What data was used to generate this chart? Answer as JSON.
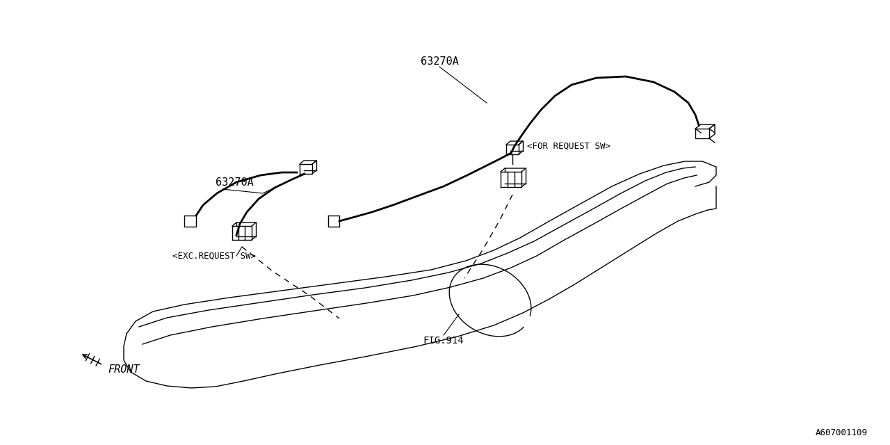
{
  "bg_color": "#ffffff",
  "line_color": "#000000",
  "lw_thick": 2.0,
  "lw_thin": 1.0,
  "part_number_top": "63270A",
  "part_number_left": "63270A",
  "label_for_request": "<FOR REQUEST SW>",
  "label_exc_request": "<EXC.REQUEST SW>",
  "label_fig": "FIG.914",
  "label_front": "FRONT",
  "label_code": "A607001109",
  "text_color": "#000000",
  "font_size_label": 10,
  "font_size_code": 9,
  "font_size_front": 11
}
